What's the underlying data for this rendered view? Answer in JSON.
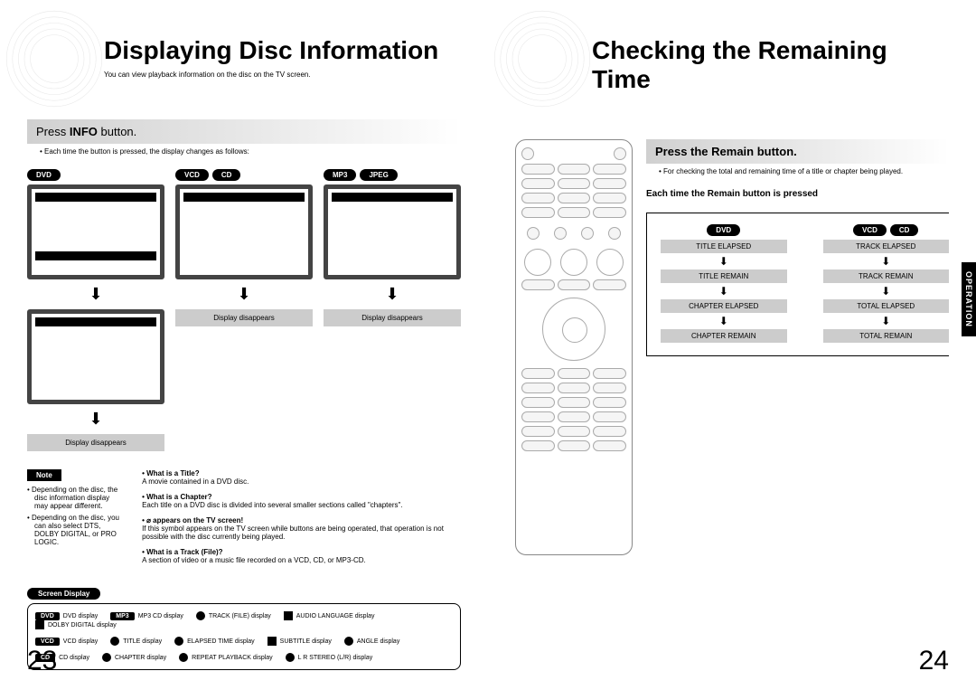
{
  "left": {
    "title": "Displaying Disc Information",
    "subtitle": "You can view playback information on the disc on the TV screen.",
    "section_title_pre": "Press ",
    "section_title_bold": "INFO",
    "section_title_post": " button.",
    "section_sub": "• Each time the button is pressed, the display changes as follows:",
    "cols": [
      {
        "pills": [
          "DVD"
        ],
        "tall": true
      },
      {
        "pills": [
          "VCD",
          "CD"
        ],
        "tall": false
      },
      {
        "pills": [
          "MP3",
          "JPEG"
        ],
        "tall": false
      }
    ],
    "disappear": "Display disappears",
    "note_label": "Note",
    "notes": [
      "• Depending on the disc, the disc information display may appear different.",
      "• Depending on the disc, you can also select DTS, DOLBY DIGITAL, or PRO LOGIC."
    ],
    "faq": [
      {
        "q": "• What is a Title?",
        "a": "A movie contained in a DVD disc."
      },
      {
        "q": "• What is a Chapter?",
        "a": "Each title on a DVD disc is divided into several smaller sections called \"chapters\"."
      },
      {
        "q": "• ⌀ appears on the TV screen!",
        "a": "If this symbol appears on the TV screen while buttons are being operated, that operation is not possible with the disc currently being played."
      },
      {
        "q": "• What is a Track (File)?",
        "a": "A section of video or a music file recorded on a VCD, CD, or MP3-CD."
      }
    ],
    "sd_header": "Screen Display",
    "sd_rows": [
      [
        {
          "badge": "DVD",
          "label": "DVD display"
        },
        {
          "badge": "MP3",
          "label": "MP3 CD display"
        },
        {
          "ico": "round",
          "label": "TRACK (FILE) display"
        },
        {
          "ico": "sq",
          "label": "AUDIO LANGUAGE display"
        },
        {
          "ico": "sq",
          "label": "DOLBY DIGITAL display"
        }
      ],
      [
        {
          "badge": "VCD",
          "label": "VCD display"
        },
        {
          "ico": "round",
          "label": "TITLE display"
        },
        {
          "ico": "round",
          "label": "ELAPSED TIME display"
        },
        {
          "ico": "sq",
          "label": "SUBTITLE display"
        },
        {
          "ico": "round",
          "label": "ANGLE display"
        }
      ],
      [
        {
          "badge": "CD",
          "label": "CD display"
        },
        {
          "ico": "round",
          "label": "CHAPTER display"
        },
        {
          "ico": "round",
          "label": "REPEAT PLAYBACK display"
        },
        {
          "ico": "round",
          "label": "L R  STEREO (L/R) display"
        }
      ]
    ],
    "pagenum": "23"
  },
  "right": {
    "title": "Checking the Remaining Time",
    "section_title": "Press the Remain button.",
    "section_sub": "• For checking the total and remaining time of a title or chapter being played.",
    "remain_heading": "Each time the Remain button is pressed",
    "flow": [
      {
        "pills": [
          "DVD"
        ],
        "steps": [
          "TITLE ELAPSED",
          "TITLE REMAIN",
          "CHAPTER ELAPSED",
          "CHAPTER REMAIN"
        ]
      },
      {
        "pills": [
          "VCD",
          "CD"
        ],
        "steps": [
          "TRACK ELAPSED",
          "TRACK REMAIN",
          "TOTAL ELAPSED",
          "TOTAL REMAIN"
        ]
      }
    ],
    "side_tab": "OPERATION",
    "pagenum": "24"
  }
}
